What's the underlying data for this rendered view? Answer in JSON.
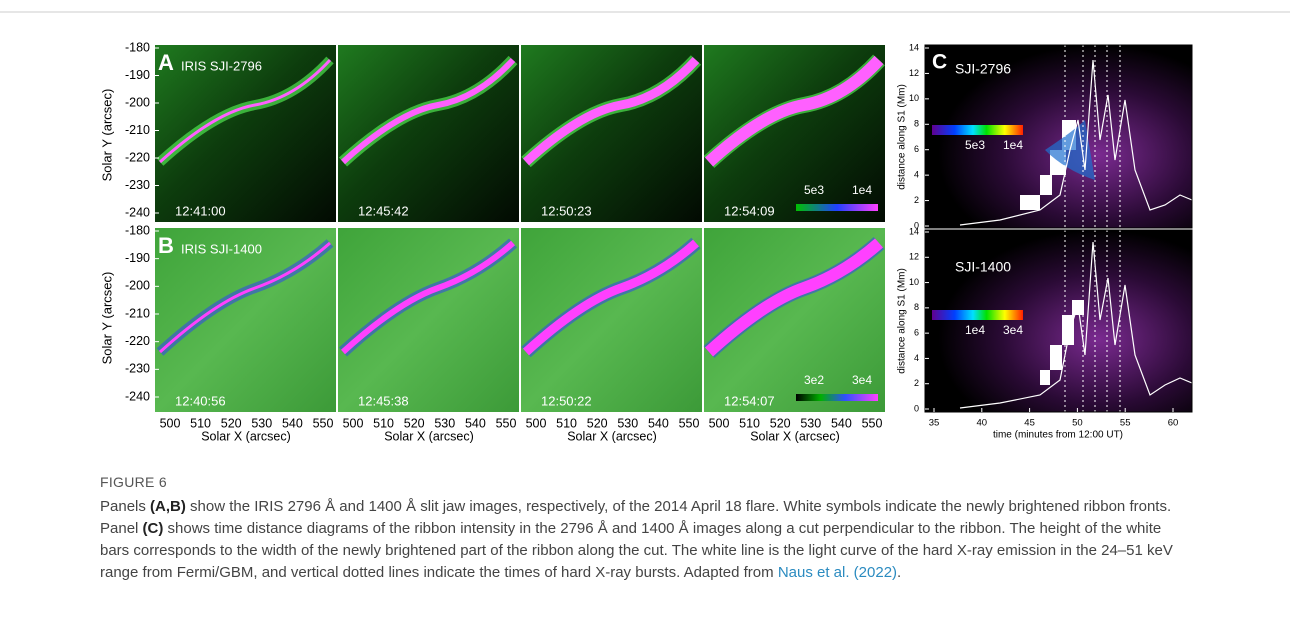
{
  "figure": {
    "panel_a": {
      "label": "A",
      "title": "IRIS SJI-2796",
      "times": [
        "12:41:00",
        "12:45:42",
        "12:50:23",
        "12:54:09"
      ],
      "colorbar_labels": [
        "5e3",
        "1e4"
      ]
    },
    "panel_b": {
      "label": "B",
      "title": "IRIS SJI-1400",
      "times": [
        "12:40:56",
        "12:45:38",
        "12:50:22",
        "12:54:07"
      ],
      "colorbar_labels": [
        "3e2",
        "3e4"
      ]
    },
    "y_axis": {
      "title": "Solar Y (arcsec)",
      "ticks": [
        -180,
        -190,
        -200,
        -210,
        -220,
        -230,
        -240
      ]
    },
    "x_axis": {
      "title": "Solar X (arcsec)",
      "ticks": [
        500,
        510,
        520,
        530,
        540,
        550
      ]
    },
    "panel_c": {
      "label": "C",
      "top_title": "SJI-2796",
      "top_colorbar_labels": [
        "5e3",
        "1e4"
      ],
      "bottom_title": "SJI-1400",
      "bottom_colorbar_labels": [
        "1e4",
        "3e4"
      ],
      "y_title": "distance along S1 (Mm)",
      "y_ticks": [
        0,
        2,
        4,
        6,
        8,
        10,
        12,
        14
      ],
      "x_ticks": [
        35,
        40,
        45,
        50,
        55,
        60
      ],
      "x_title": "time (minutes from 12:00 UT)"
    }
  },
  "caption": {
    "label": "FIGURE 6",
    "segments": [
      "Panels ",
      "(A,B)",
      " show the IRIS 2796 Å and 1400 Å slit jaw images, respectively, of the 2014 April 18 flare. White symbols indicate the newly brightened ribbon fronts. Panel ",
      "(C)",
      " shows time distance diagrams of the ribbon intensity in the 2796 Å and 1400 Å images along a cut perpendicular to the ribbon. The height of the white bars corresponds to the width of the newly brightened part of the ribbon along the cut. The white line is the light curve of the hard X-ray emission in the 24–51 keV range from Fermi/GBM, and vertical dotted lines indicate the times of hard X-ray bursts. Adapted from ",
      "Naus et al. (2022)",
      "."
    ]
  }
}
